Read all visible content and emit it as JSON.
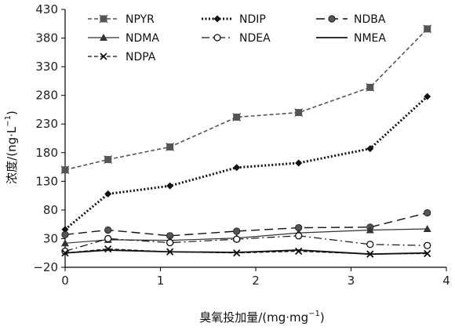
{
  "chart_data": {
    "type": "line",
    "title": "",
    "xlabel": "臭氧投加量/(mg·mg",
    "xlabel_sup": "−1",
    "xlabel_close": ")",
    "ylabel": "浓度/(ng·L",
    "ylabel_sup": "−1",
    "ylabel_close": ")",
    "xlim": [
      0,
      4
    ],
    "ylim": [
      -20,
      430
    ],
    "x_ticks": [
      0,
      1,
      2,
      3,
      4
    ],
    "x_tick_labels": [
      "0",
      "1",
      "2",
      "3",
      "4"
    ],
    "y_ticks": [
      -20,
      30,
      80,
      130,
      180,
      230,
      280,
      330,
      380,
      430
    ],
    "y_tick_labels": [
      "−20",
      "30",
      "80",
      "130",
      "180",
      "230",
      "280",
      "330",
      "380",
      "430"
    ],
    "grid": false,
    "legend_position": "top",
    "x": [
      0,
      0.45,
      1.1,
      1.8,
      2.45,
      3.2,
      3.8
    ],
    "series": [
      {
        "name": "NPYR",
        "color": "#555555",
        "dash": "5,3",
        "width": 1.6,
        "marker": "x-square",
        "values": [
          150,
          168,
          190,
          242,
          250,
          294,
          396
        ]
      },
      {
        "name": "NDIP",
        "color": "#111111",
        "dash": "2,2.5",
        "width": 3,
        "marker": "diamond",
        "values": [
          46,
          108,
          122,
          154,
          162,
          187,
          278
        ]
      },
      {
        "name": "NDBA",
        "color": "#111111",
        "dash": "11,6",
        "width": 1.4,
        "marker": "circle-filled",
        "values": [
          37,
          45,
          35,
          43,
          49,
          50,
          75
        ]
      },
      {
        "name": "NDMA",
        "color": "#333333",
        "dash": "",
        "width": 1.2,
        "marker": "triangle",
        "values": [
          22,
          28,
          27,
          31,
          40,
          45,
          47
        ]
      },
      {
        "name": "NDEA",
        "color": "#111111",
        "dash": "10,4,2,4",
        "width": 1.2,
        "marker": "circle-open",
        "values": [
          8,
          30,
          23,
          29,
          35,
          20,
          18
        ]
      },
      {
        "name": "NMEA",
        "color": "#111111",
        "dash": "",
        "width": 1.8,
        "marker": "none",
        "values": [
          5,
          10,
          7,
          6,
          10,
          3,
          5
        ]
      },
      {
        "name": "NDPA",
        "color": "#111111",
        "dash": "5,3",
        "width": 1.2,
        "marker": "x",
        "values": [
          5,
          12,
          7,
          5,
          8,
          3,
          4
        ]
      }
    ]
  }
}
